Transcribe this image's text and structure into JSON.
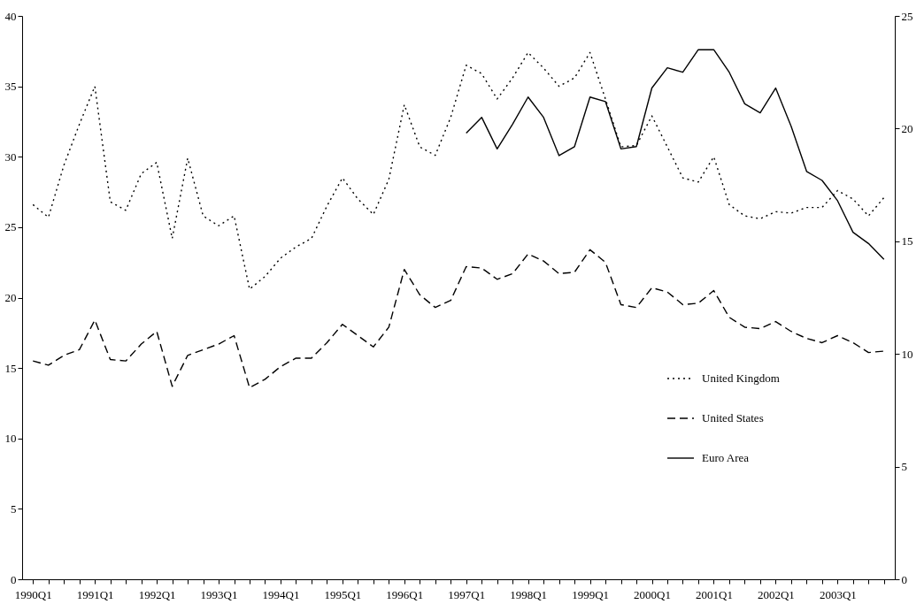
{
  "chart_data": {
    "type": "line",
    "categories": [
      "1990Q1",
      null,
      null,
      null,
      "1991Q1",
      null,
      null,
      null,
      "1992Q1",
      null,
      null,
      null,
      "1993Q1",
      null,
      null,
      null,
      "1994Q1",
      null,
      null,
      null,
      "1995Q1",
      null,
      null,
      null,
      "1996Q1",
      null,
      null,
      null,
      "1997Q1",
      null,
      null,
      null,
      "1998Q1",
      null,
      null,
      null,
      "1999Q1",
      null,
      null,
      null,
      "2000Q1",
      null,
      null,
      null,
      "2001Q1",
      null,
      null,
      null,
      "2002Q1",
      null,
      null,
      null,
      "2003Q1",
      null,
      null,
      null
    ],
    "series": [
      {
        "name": "United Kingdom",
        "color": "#000000",
        "line_style": "dotted",
        "values": [
          26.6,
          25.7,
          29.4,
          32.3,
          35.0,
          26.8,
          26.2,
          28.8,
          29.6,
          24.2,
          29.9,
          25.8,
          25.1,
          25.8,
          20.6,
          21.5,
          22.8,
          23.6,
          24.2,
          26.5,
          28.5,
          27.0,
          25.9,
          28.4,
          33.7,
          30.7,
          30.1,
          32.8,
          36.5,
          35.9,
          34.1,
          35.6,
          37.4,
          36.3,
          35.0,
          35.6,
          37.4,
          34.1,
          30.7,
          30.8,
          32.9,
          30.7,
          28.5,
          28.2,
          30.0,
          26.6,
          25.8,
          25.6,
          26.1,
          26.0,
          26.4,
          26.4,
          27.6,
          27.0,
          25.8,
          27.1
        ]
      },
      {
        "name": "United States",
        "color": "#000000",
        "line_style": "dashed",
        "values": [
          15.5,
          15.2,
          15.9,
          16.3,
          18.4,
          15.6,
          15.5,
          16.7,
          17.6,
          13.7,
          15.9,
          16.3,
          16.7,
          17.3,
          13.6,
          14.2,
          15.1,
          15.7,
          15.7,
          16.8,
          18.1,
          17.3,
          16.5,
          17.9,
          22.0,
          20.2,
          19.3,
          19.8,
          22.2,
          22.1,
          21.3,
          21.7,
          23.1,
          22.6,
          21.7,
          21.8,
          23.4,
          22.5,
          19.5,
          19.3,
          20.7,
          20.4,
          19.5,
          19.6,
          20.5,
          18.6,
          17.9,
          17.8,
          18.3,
          17.6,
          17.1,
          16.8,
          17.3,
          16.8,
          16.1,
          16.2
        ]
      },
      {
        "name": "Euro Area",
        "color": "#000000",
        "line_style": "solid",
        "axis": "y2",
        "values": [
          null,
          null,
          null,
          null,
          null,
          null,
          null,
          null,
          null,
          null,
          null,
          null,
          null,
          null,
          null,
          null,
          null,
          null,
          null,
          null,
          null,
          null,
          null,
          null,
          null,
          null,
          null,
          null,
          19.8,
          20.5,
          19.1,
          20.2,
          21.4,
          20.5,
          18.8,
          19.2,
          21.4,
          21.2,
          19.1,
          19.2,
          21.8,
          22.7,
          22.5,
          23.5,
          23.5,
          22.5,
          21.1,
          20.7,
          21.8,
          20.1,
          18.1,
          17.7,
          16.8,
          15.4,
          14.9,
          14.2
        ]
      }
    ],
    "ylim": [
      0,
      40
    ],
    "yticks": [
      0,
      5,
      10,
      15,
      20,
      25,
      30,
      35,
      40
    ],
    "y2lim": [
      0,
      25
    ],
    "y2ticks": [
      0,
      5,
      10,
      15,
      20,
      25
    ],
    "grid": false,
    "legend": "bottom right",
    "marker": "none"
  }
}
